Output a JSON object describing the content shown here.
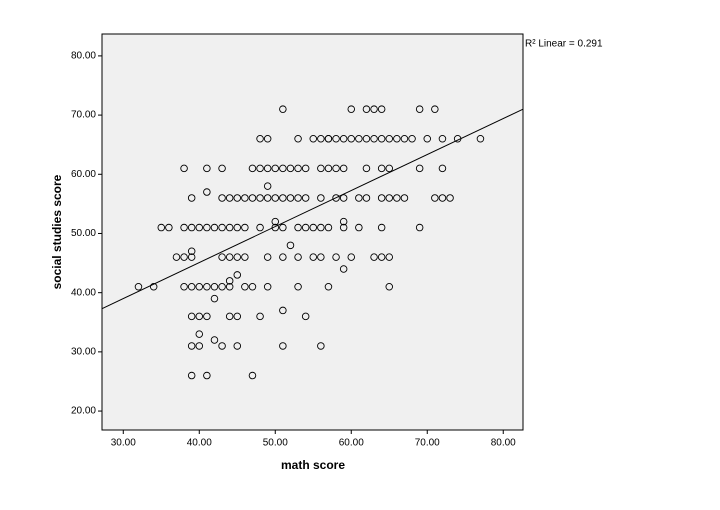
{
  "chart_data": {
    "type": "scatter",
    "x_label": "math score",
    "y_label": "social studies score",
    "annotation": "R² Linear = 0.291",
    "xlim": [
      27.2,
      82.6
    ],
    "ylim": [
      16.8,
      83.7
    ],
    "xticks": [
      {
        "value": 30,
        "label": "30.00"
      },
      {
        "value": 40,
        "label": "40.00"
      },
      {
        "value": 50,
        "label": "50.00"
      },
      {
        "value": 60,
        "label": "60.00"
      },
      {
        "value": 70,
        "label": "70.00"
      },
      {
        "value": 80,
        "label": "80.00"
      }
    ],
    "yticks": [
      {
        "value": 20,
        "label": "20.00"
      },
      {
        "value": 30,
        "label": "30.00"
      },
      {
        "value": 40,
        "label": "40.00"
      },
      {
        "value": 50,
        "label": "50.00"
      },
      {
        "value": 60,
        "label": "60.00"
      },
      {
        "value": 70,
        "label": "70.00"
      },
      {
        "value": 80,
        "label": "80.00"
      }
    ],
    "background": "#f0f0f0",
    "marker_color": "#000000",
    "line_color": "#000000",
    "fit_line": {
      "x": [
        27.2,
        82.6
      ],
      "y": [
        37.3,
        71.0
      ]
    },
    "x": [
      51,
      60,
      62,
      63,
      64,
      69,
      71,
      48,
      49,
      53,
      55,
      56,
      57,
      57,
      58,
      59,
      60,
      61,
      62,
      63,
      64,
      65,
      66,
      67,
      68,
      70,
      72,
      74,
      77,
      38,
      41,
      43,
      47,
      48,
      49,
      50,
      51,
      52,
      53,
      54,
      56,
      57,
      58,
      59,
      62,
      64,
      65,
      69,
      72,
      49,
      41,
      39,
      43,
      44,
      45,
      46,
      47,
      48,
      49,
      50,
      51,
      52,
      53,
      54,
      56,
      58,
      59,
      61,
      62,
      64,
      65,
      66,
      67,
      71,
      72,
      73,
      50,
      59,
      35,
      36,
      38,
      39,
      40,
      41,
      42,
      43,
      44,
      45,
      46,
      48,
      50,
      51,
      53,
      54,
      55,
      56,
      57,
      59,
      61,
      64,
      69,
      52,
      39,
      37,
      38,
      39,
      43,
      44,
      45,
      46,
      49,
      51,
      53,
      55,
      56,
      58,
      60,
      63,
      64,
      65,
      59,
      45,
      44,
      32,
      34,
      38,
      39,
      40,
      41,
      42,
      43,
      44,
      46,
      47,
      49,
      53,
      57,
      65,
      42,
      51,
      39,
      40,
      41,
      44,
      45,
      48,
      54,
      40,
      42,
      39,
      40,
      43,
      45,
      51,
      56,
      39,
      41,
      47
    ],
    "y": [
      71,
      71,
      71,
      71,
      71,
      71,
      71,
      66,
      66,
      66,
      66,
      66,
      66,
      66,
      66,
      66,
      66,
      66,
      66,
      66,
      66,
      66,
      66,
      66,
      66,
      66,
      66,
      66,
      66,
      61,
      61,
      61,
      61,
      61,
      61,
      61,
      61,
      61,
      61,
      61,
      61,
      61,
      61,
      61,
      61,
      61,
      61,
      61,
      61,
      58,
      57,
      56,
      56,
      56,
      56,
      56,
      56,
      56,
      56,
      56,
      56,
      56,
      56,
      56,
      56,
      56,
      56,
      56,
      56,
      56,
      56,
      56,
      56,
      56,
      56,
      56,
      52,
      52,
      51,
      51,
      51,
      51,
      51,
      51,
      51,
      51,
      51,
      51,
      51,
      51,
      51,
      51,
      51,
      51,
      51,
      51,
      51,
      51,
      51,
      51,
      51,
      48,
      47,
      46,
      46,
      46,
      46,
      46,
      46,
      46,
      46,
      46,
      46,
      46,
      46,
      46,
      46,
      46,
      46,
      46,
      44,
      43,
      42,
      41,
      41,
      41,
      41,
      41,
      41,
      41,
      41,
      41,
      41,
      41,
      41,
      41,
      41,
      41,
      39,
      37,
      36,
      36,
      36,
      36,
      36,
      36,
      36,
      33,
      32,
      31,
      31,
      31,
      31,
      31,
      31,
      26,
      26,
      26
    ]
  }
}
